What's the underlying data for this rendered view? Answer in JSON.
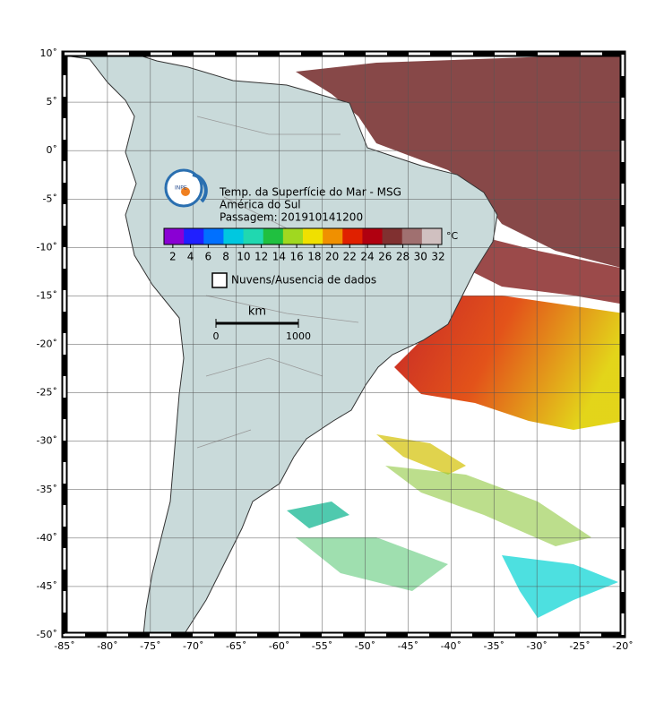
{
  "map": {
    "xlim": [
      -85,
      -20
    ],
    "ylim": [
      -50,
      10
    ],
    "xticks": [
      {
        "value": -85,
        "label": "-85˚"
      },
      {
        "value": -80,
        "label": "-80˚"
      },
      {
        "value": -75,
        "label": "-75˚"
      },
      {
        "value": -70,
        "label": "-70˚"
      },
      {
        "value": -65,
        "label": "-65˚"
      },
      {
        "value": -60,
        "label": "-60˚"
      },
      {
        "value": -55,
        "label": "-55˚"
      },
      {
        "value": -50,
        "label": "-50˚"
      },
      {
        "value": -45,
        "label": "-45˚"
      },
      {
        "value": -40,
        "label": "-40˚"
      },
      {
        "value": -35,
        "label": "-35˚"
      },
      {
        "value": -30,
        "label": "-30˚"
      },
      {
        "value": -25,
        "label": "-25˚"
      },
      {
        "value": -20,
        "label": "-20˚"
      }
    ],
    "yticks": [
      {
        "value": 10,
        "label": "10˚"
      },
      {
        "value": 5,
        "label": "5˚"
      },
      {
        "value": 0,
        "label": "0˚"
      },
      {
        "value": -5,
        "label": "-5˚"
      },
      {
        "value": -10,
        "label": "-10˚"
      },
      {
        "value": -15,
        "label": "-15˚"
      },
      {
        "value": -20,
        "label": "-20˚"
      },
      {
        "value": -25,
        "label": "-25˚"
      },
      {
        "value": -30,
        "label": "-30˚"
      },
      {
        "value": -35,
        "label": "-35˚"
      },
      {
        "value": -40,
        "label": "-40˚"
      },
      {
        "value": -45,
        "label": "-45˚"
      },
      {
        "value": -50,
        "label": "-50˚"
      }
    ],
    "grid": true
  },
  "legend": {
    "logo": "INPE",
    "title": [
      "Temp. da Superfície do Mar - MSG",
      "América do Sul",
      "Passagem: 201910141200"
    ],
    "colorbar": {
      "unit": "°C",
      "range": [
        1,
        32.4
      ],
      "ticks": [
        2,
        4,
        6,
        8,
        10,
        12,
        14,
        16,
        18,
        20,
        22,
        24,
        26,
        28,
        30,
        32
      ],
      "colors": [
        "#8a00d4",
        "#2020ff",
        "#0070ff",
        "#00c8e0",
        "#20d8b0",
        "#20c040",
        "#a0d820",
        "#f0e000",
        "#f09000",
        "#e02000",
        "#b00010",
        "#803030",
        "#a07070",
        "#d0c0c0"
      ]
    },
    "clouds": "Nuvens/Ausencia de dados",
    "scale": {
      "unit": "km",
      "ticks": [
        0,
        1000
      ]
    }
  }
}
